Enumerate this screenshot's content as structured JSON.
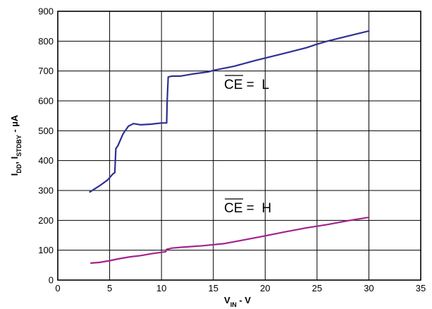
{
  "chart_data": {
    "type": "line",
    "title": "",
    "xlabel": {
      "main": "V",
      "sub": "IN",
      "suffix": " - V"
    },
    "ylabel": {
      "p1": "I",
      "s1": "DD",
      "p2": ", I",
      "s2": "STDBY",
      "suffix": " - µA"
    },
    "xlim": [
      0,
      35
    ],
    "ylim": [
      0,
      900
    ],
    "xticks": [
      0,
      5,
      10,
      15,
      20,
      25,
      30,
      35
    ],
    "yticks": [
      0,
      100,
      200,
      300,
      400,
      500,
      600,
      700,
      800,
      900
    ],
    "grid": true,
    "series": [
      {
        "name": "CE = L",
        "color": "#2e3192",
        "points": [
          [
            3.1,
            295
          ],
          [
            4.0,
            315
          ],
          [
            4.8,
            335
          ],
          [
            5.3,
            355
          ],
          [
            5.5,
            360
          ],
          [
            5.6,
            440
          ],
          [
            5.8,
            450
          ],
          [
            6.3,
            490
          ],
          [
            6.8,
            515
          ],
          [
            7.3,
            524
          ],
          [
            8.0,
            520
          ],
          [
            9.0,
            522
          ],
          [
            10.0,
            526
          ],
          [
            10.5,
            526
          ],
          [
            10.55,
            600
          ],
          [
            10.65,
            680
          ],
          [
            11.0,
            683
          ],
          [
            11.8,
            683
          ],
          [
            13.0,
            690
          ],
          [
            14.5,
            697
          ],
          [
            15.0,
            702
          ],
          [
            17.0,
            716
          ],
          [
            19.0,
            735
          ],
          [
            21.0,
            752
          ],
          [
            22.5,
            765
          ],
          [
            24.0,
            778
          ],
          [
            25.0,
            790
          ],
          [
            26.0,
            800
          ],
          [
            28.0,
            817
          ],
          [
            30.0,
            834
          ]
        ],
        "label_main": "CE",
        "label_suffix": " =  L"
      },
      {
        "name": "CE = H",
        "color": "#a3238e",
        "points": [
          [
            3.2,
            57
          ],
          [
            4.0,
            59
          ],
          [
            5.0,
            65
          ],
          [
            6.0,
            72
          ],
          [
            7.0,
            78
          ],
          [
            8.0,
            82
          ],
          [
            9.0,
            88
          ],
          [
            10.4,
            95
          ],
          [
            10.5,
            103
          ],
          [
            11.0,
            107
          ],
          [
            12.0,
            110
          ],
          [
            14.0,
            115
          ],
          [
            16.0,
            122
          ],
          [
            18.0,
            135
          ],
          [
            20.0,
            148
          ],
          [
            22.0,
            162
          ],
          [
            24.0,
            175
          ],
          [
            26.0,
            186
          ],
          [
            28.0,
            199
          ],
          [
            30.0,
            210
          ]
        ],
        "label_main": "CE",
        "label_suffix": " =  H"
      }
    ]
  }
}
